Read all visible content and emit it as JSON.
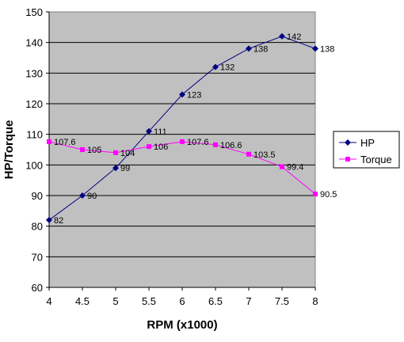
{
  "chart_data": {
    "type": "line",
    "title": "",
    "xlabel": "RPM (x1000)",
    "ylabel": "HP/Torque",
    "x": [
      4,
      4.5,
      5,
      5.5,
      6,
      6.5,
      7,
      7.5,
      8
    ],
    "xlim": [
      4,
      8
    ],
    "ylim": [
      60,
      150
    ],
    "x_ticks": [
      "4",
      "4.5",
      "5",
      "5.5",
      "6",
      "6.5",
      "7",
      "7.5",
      "8"
    ],
    "y_ticks": [
      "60",
      "70",
      "80",
      "90",
      "100",
      "110",
      "120",
      "130",
      "140",
      "150"
    ],
    "grid": true,
    "legend_position": "right",
    "plot_background": "#c0c0c0",
    "series": [
      {
        "name": "HP",
        "color": "#000080",
        "marker": "diamond",
        "values": [
          82,
          90,
          99,
          111,
          123,
          132,
          138,
          142,
          138
        ],
        "labels": [
          "82",
          "90",
          "99",
          "111",
          "123",
          "132",
          "138",
          "142",
          "138"
        ]
      },
      {
        "name": "Torque",
        "color": "#ff00ff",
        "marker": "square",
        "values": [
          107.6,
          105,
          104,
          106,
          107.6,
          106.6,
          103.5,
          99.4,
          90.5
        ],
        "labels": [
          "107.6",
          "105",
          "104",
          "106",
          "107.6",
          "106.6",
          "103.5",
          "99.4",
          "90.5"
        ]
      }
    ]
  }
}
